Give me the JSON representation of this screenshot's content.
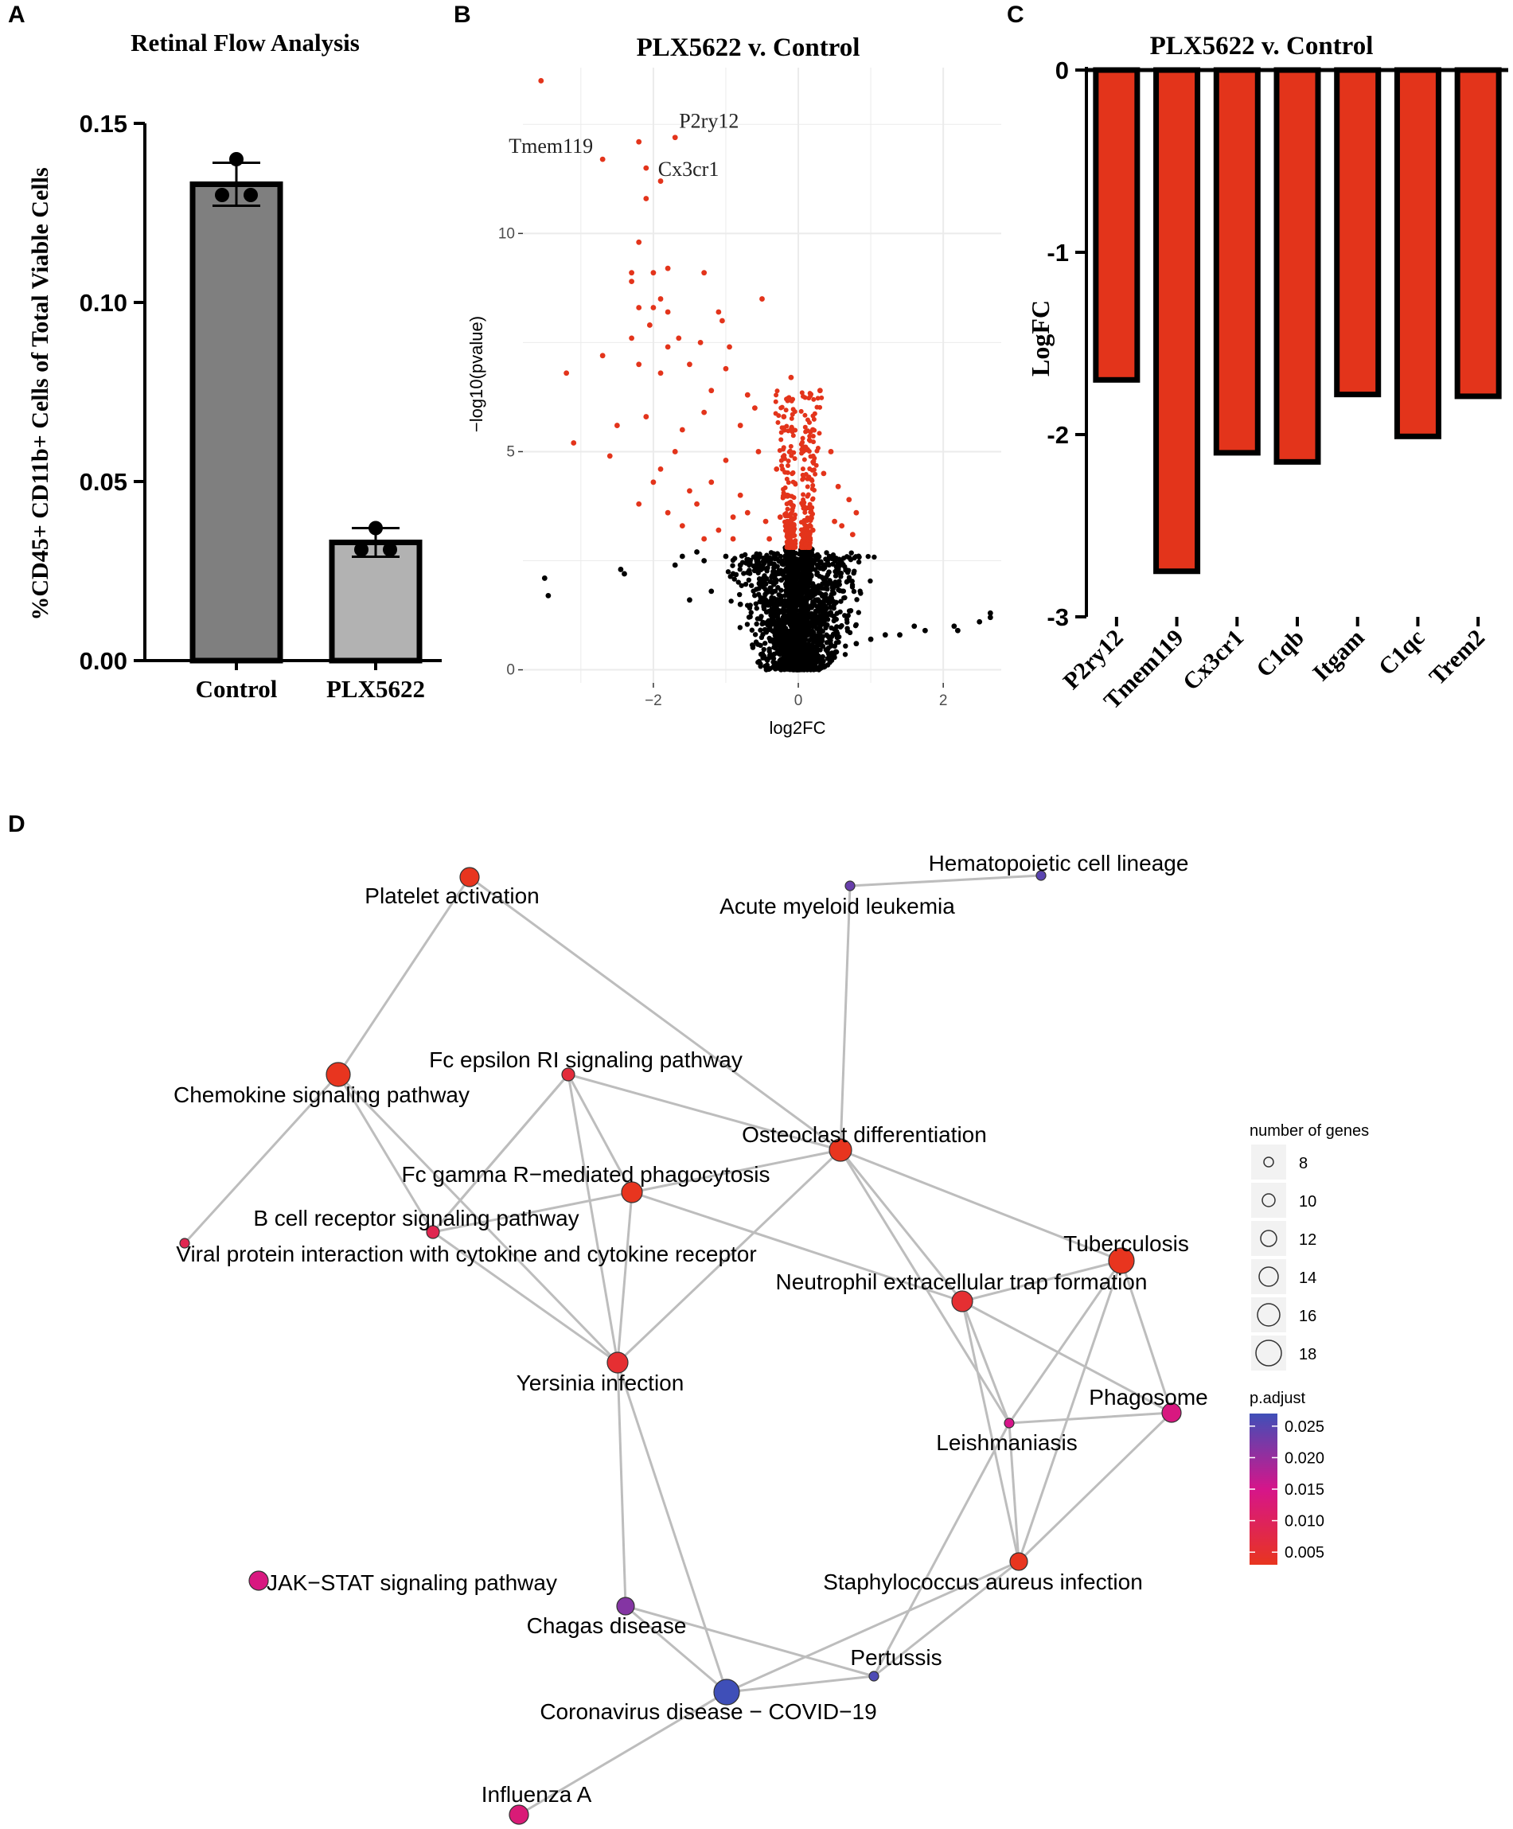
{
  "panel_letters": {
    "a": "A",
    "b": "B",
    "c": "C",
    "d": "D"
  },
  "colors": {
    "bar_dark": "#7f7f7f",
    "bar_light": "#b2b2b2",
    "red": "#e3341b",
    "black": "#000000",
    "grid_bg": "#ffffff",
    "grid_line": "#ebebeb",
    "edge": "#bdbdbd",
    "padj_low": "#e8351f",
    "padj_mid": "#d6158a",
    "padj_high": "#3f4fb8"
  },
  "chart_data": [
    {
      "id": "A",
      "type": "bar",
      "title": "Retinal Flow Analysis",
      "ylabel": "%CD45+ CD11b+ Cells of Total Viable Cells",
      "xlabel": "",
      "categories": [
        "Control",
        "PLX5622"
      ],
      "values": [
        0.133,
        0.033
      ],
      "errors": [
        0.006,
        0.004
      ],
      "points": [
        [
          0.14,
          0.13,
          0.13
        ],
        [
          0.037,
          0.031,
          0.031
        ]
      ],
      "ylim": [
        0,
        0.15
      ],
      "yticks": [
        "0.00",
        "0.05",
        "0.10",
        "0.15"
      ],
      "ytick_values": [
        0,
        0.05,
        0.1,
        0.15
      ]
    },
    {
      "id": "B",
      "type": "scatter",
      "title": "PLX5622 v. Control",
      "xlabel": "log2FC",
      "ylabel": "−log10(pvalue)",
      "xlim": [
        -3.8,
        2.8
      ],
      "ylim": [
        -0.3,
        13.8
      ],
      "xticks": [
        "−2",
        "0",
        "2"
      ],
      "xtick_values": [
        -2,
        0,
        2
      ],
      "yticks": [
        "0",
        "5",
        "10"
      ],
      "ytick_values": [
        0,
        5,
        10
      ],
      "significance_threshold": 2.8,
      "annotations": [
        {
          "label": "P2ry12",
          "x": -1.7,
          "y": 12.2
        },
        {
          "label": "Tmem119",
          "x": -2.7,
          "y": 11.7
        },
        {
          "label": "Cx3cr1",
          "x": -2.1,
          "y": 11.5
        }
      ],
      "significant_points": [
        [
          -3.55,
          13.5
        ],
        [
          -2.2,
          12.1
        ],
        [
          -1.7,
          12.2
        ],
        [
          -2.7,
          11.7
        ],
        [
          -2.1,
          11.5
        ],
        [
          -1.9,
          11.2
        ],
        [
          -2.1,
          10.8
        ],
        [
          -2.2,
          9.8
        ],
        [
          -2.3,
          9.1
        ],
        [
          -2.0,
          9.1
        ],
        [
          -1.8,
          9.2
        ],
        [
          -1.3,
          9.1
        ],
        [
          -2.3,
          8.9
        ],
        [
          -1.9,
          8.5
        ],
        [
          -2.0,
          8.3
        ],
        [
          -2.2,
          8.3
        ],
        [
          -1.8,
          8.2
        ],
        [
          -2.05,
          7.9
        ],
        [
          -1.1,
          8.2
        ],
        [
          -1.05,
          8.0
        ],
        [
          -0.5,
          8.5
        ],
        [
          -1.65,
          7.6
        ],
        [
          -1.35,
          7.5
        ],
        [
          -0.95,
          7.4
        ],
        [
          -2.7,
          7.2
        ],
        [
          -1.8,
          7.4
        ],
        [
          -1.5,
          7.0
        ],
        [
          -2.3,
          7.6
        ],
        [
          -1.9,
          6.8
        ],
        [
          -2.2,
          7.0
        ],
        [
          -3.2,
          6.8
        ],
        [
          -1.2,
          6.4
        ],
        [
          -0.7,
          6.3
        ],
        [
          -1.0,
          6.9
        ],
        [
          -0.6,
          6.0
        ],
        [
          -2.5,
          5.6
        ],
        [
          -2.1,
          5.8
        ],
        [
          -1.6,
          5.5
        ],
        [
          -1.3,
          5.9
        ],
        [
          -0.8,
          5.6
        ],
        [
          -3.1,
          5.2
        ],
        [
          -2.6,
          4.9
        ],
        [
          -1.7,
          5.0
        ],
        [
          -1.9,
          4.6
        ],
        [
          -1.0,
          4.8
        ],
        [
          -0.55,
          5.0
        ],
        [
          -2.0,
          4.3
        ],
        [
          -1.5,
          4.1
        ],
        [
          -1.2,
          4.3
        ],
        [
          -0.8,
          4.0
        ],
        [
          -2.2,
          3.8
        ],
        [
          -1.8,
          3.6
        ],
        [
          -1.4,
          3.8
        ],
        [
          -0.9,
          3.5
        ],
        [
          -1.6,
          3.3
        ],
        [
          -1.1,
          3.2
        ],
        [
          -0.7,
          3.6
        ],
        [
          -0.45,
          3.4
        ],
        [
          -1.3,
          3.0
        ],
        [
          -0.4,
          3.0
        ],
        [
          -0.9,
          3.0
        ],
        [
          -0.1,
          6.7
        ],
        [
          0.3,
          6.4
        ],
        [
          -0.2,
          5.8
        ],
        [
          0.2,
          5.5
        ],
        [
          0.55,
          4.2
        ],
        [
          0.7,
          3.9
        ],
        [
          0.8,
          3.6
        ],
        [
          0.6,
          3.3
        ],
        [
          0.75,
          3.1
        ],
        [
          0.5,
          3.4
        ],
        [
          0.45,
          5.0
        ],
        [
          -0.3,
          4.6
        ],
        [
          0.35,
          4.5
        ],
        [
          -0.25,
          3.5
        ],
        [
          0.2,
          3.2
        ],
        [
          -0.15,
          4.0
        ],
        [
          0.1,
          5.1
        ]
      ],
      "ns_points": [
        [
          -3.5,
          2.1
        ],
        [
          -3.45,
          1.7
        ],
        [
          -2.4,
          2.2
        ],
        [
          -2.45,
          2.3
        ],
        [
          2.65,
          1.3
        ],
        [
          2.65,
          1.2
        ],
        [
          2.5,
          1.1
        ],
        [
          2.2,
          0.9
        ],
        [
          2.15,
          1.0
        ],
        [
          1.75,
          0.9
        ],
        [
          1.6,
          1.0
        ],
        [
          1.4,
          0.8
        ],
        [
          1.2,
          0.8
        ],
        [
          1.0,
          0.7
        ],
        [
          0.8,
          0.6
        ],
        [
          -1.7,
          2.4
        ],
        [
          -1.6,
          2.6
        ],
        [
          -1.4,
          2.7
        ],
        [
          -1.3,
          2.5
        ],
        [
          -1.0,
          2.6
        ],
        [
          -0.9,
          2.2
        ],
        [
          -0.8,
          2.4
        ],
        [
          -1.2,
          1.8
        ],
        [
          -0.8,
          1.5
        ],
        [
          -1.5,
          1.6
        ]
      ]
    },
    {
      "id": "C",
      "type": "bar",
      "title": "PLX5622 v. Control",
      "ylabel": "LogFC",
      "xlabel": "",
      "categories": [
        "P2ry12",
        "Tmem119",
        "Cx3cr1",
        "C1qb",
        "Itgam",
        "C1qc",
        "Trem2"
      ],
      "values": [
        -1.7,
        -2.75,
        -2.1,
        -2.15,
        -1.78,
        -2.01,
        -1.79
      ],
      "ylim": [
        -3,
        0
      ],
      "yticks": [
        "0",
        "-1",
        "-2",
        "-3"
      ],
      "ytick_values": [
        0,
        -1,
        -2,
        -3
      ]
    },
    {
      "id": "D",
      "type": "network",
      "size_legend_title": "number of genes",
      "size_legend": [
        8,
        10,
        12,
        14,
        16,
        18
      ],
      "color_legend_title": "p.adjust",
      "color_legend_ticks": [
        "0.025",
        "0.020",
        "0.015",
        "0.010",
        "0.005"
      ],
      "color_legend_values": [
        0.025,
        0.02,
        0.015,
        0.01,
        0.005
      ],
      "nodes": [
        {
          "id": "platelet",
          "label": "Platelet activation",
          "genes": 14,
          "padj": 0.004
        },
        {
          "id": "hema",
          "label": "Hematopoietic cell lineage",
          "genes": 8,
          "padj": 0.024
        },
        {
          "id": "aml",
          "label": "Acute myeloid leukemia",
          "genes": 8,
          "padj": 0.023
        },
        {
          "id": "chemokine",
          "label": "Chemokine signaling pathway",
          "genes": 17,
          "padj": 0.002
        },
        {
          "id": "fceps",
          "label": "Fc epsilon RI signaling pathway",
          "genes": 10,
          "padj": 0.007
        },
        {
          "id": "osteo",
          "label": "Osteoclast differentiation",
          "genes": 16,
          "padj": 0.001
        },
        {
          "id": "fcgamma",
          "label": "Fc gamma R−mediated phagocytosis",
          "genes": 15,
          "padj": 0.002
        },
        {
          "id": "bcell",
          "label": "B cell receptor signaling pathway",
          "genes": 10,
          "padj": 0.009
        },
        {
          "id": "viral",
          "label": "Viral protein interaction with cytokine and cytokine receptor",
          "genes": 8,
          "padj": 0.009
        },
        {
          "id": "tb",
          "label": "Tuberculosis",
          "genes": 18,
          "padj": 0.001
        },
        {
          "id": "net",
          "label": "Neutrophil extracellular trap formation",
          "genes": 15,
          "padj": 0.006
        },
        {
          "id": "yersinia",
          "label": "Yersinia infection",
          "genes": 15,
          "padj": 0.006
        },
        {
          "id": "phago",
          "label": "Phagosome",
          "genes": 14,
          "padj": 0.014
        },
        {
          "id": "leish",
          "label": "Leishmaniasis",
          "genes": 8,
          "padj": 0.015
        },
        {
          "id": "jak",
          "label": "JAK−STAT signaling pathway",
          "genes": 14,
          "padj": 0.014
        },
        {
          "id": "staph",
          "label": "Staphylococcus aureus infection",
          "genes": 13,
          "padj": 0.003
        },
        {
          "id": "chagas",
          "label": "Chagas disease",
          "genes": 13,
          "padj": 0.021
        },
        {
          "id": "pertussis",
          "label": "Pertussis",
          "genes": 8,
          "padj": 0.025
        },
        {
          "id": "covid",
          "label": "Coronavirus disease − COVID−19",
          "genes": 18,
          "padj": 0.026
        },
        {
          "id": "influenza",
          "label": "Influenza A",
          "genes": 14,
          "padj": 0.013
        }
      ],
      "edges": [
        [
          "platelet",
          "chemokine"
        ],
        [
          "platelet",
          "osteo"
        ],
        [
          "aml",
          "hema"
        ],
        [
          "aml",
          "osteo"
        ],
        [
          "chemokine",
          "viral"
        ],
        [
          "chemokine",
          "bcell"
        ],
        [
          "fceps",
          "bcell"
        ],
        [
          "fceps",
          "fcgamma"
        ],
        [
          "fceps",
          "yersinia"
        ],
        [
          "fceps",
          "osteo"
        ],
        [
          "fceps",
          "bcell"
        ],
        [
          "chemokine",
          "yersinia"
        ],
        [
          "fcgamma",
          "bcell"
        ],
        [
          "fcgamma",
          "yersinia"
        ],
        [
          "fcgamma",
          "osteo"
        ],
        [
          "fcgamma",
          "net"
        ],
        [
          "osteo",
          "yersinia"
        ],
        [
          "osteo",
          "tb"
        ],
        [
          "osteo",
          "net"
        ],
        [
          "osteo",
          "leish"
        ],
        [
          "bcell",
          "yersinia"
        ],
        [
          "tb",
          "net"
        ],
        [
          "tb",
          "leish"
        ],
        [
          "tb",
          "phago"
        ],
        [
          "tb",
          "staph"
        ],
        [
          "net",
          "leish"
        ],
        [
          "net",
          "staph"
        ],
        [
          "net",
          "phago"
        ],
        [
          "leish",
          "phago"
        ],
        [
          "leish",
          "staph"
        ],
        [
          "phago",
          "staph"
        ],
        [
          "yersinia",
          "chagas"
        ],
        [
          "yersinia",
          "covid"
        ],
        [
          "chagas",
          "covid"
        ],
        [
          "chagas",
          "pertussis"
        ],
        [
          "covid",
          "pertussis"
        ],
        [
          "covid",
          "staph"
        ],
        [
          "pertussis",
          "staph"
        ],
        [
          "pertussis",
          "leish"
        ],
        [
          "covid",
          "influenza"
        ]
      ]
    }
  ]
}
